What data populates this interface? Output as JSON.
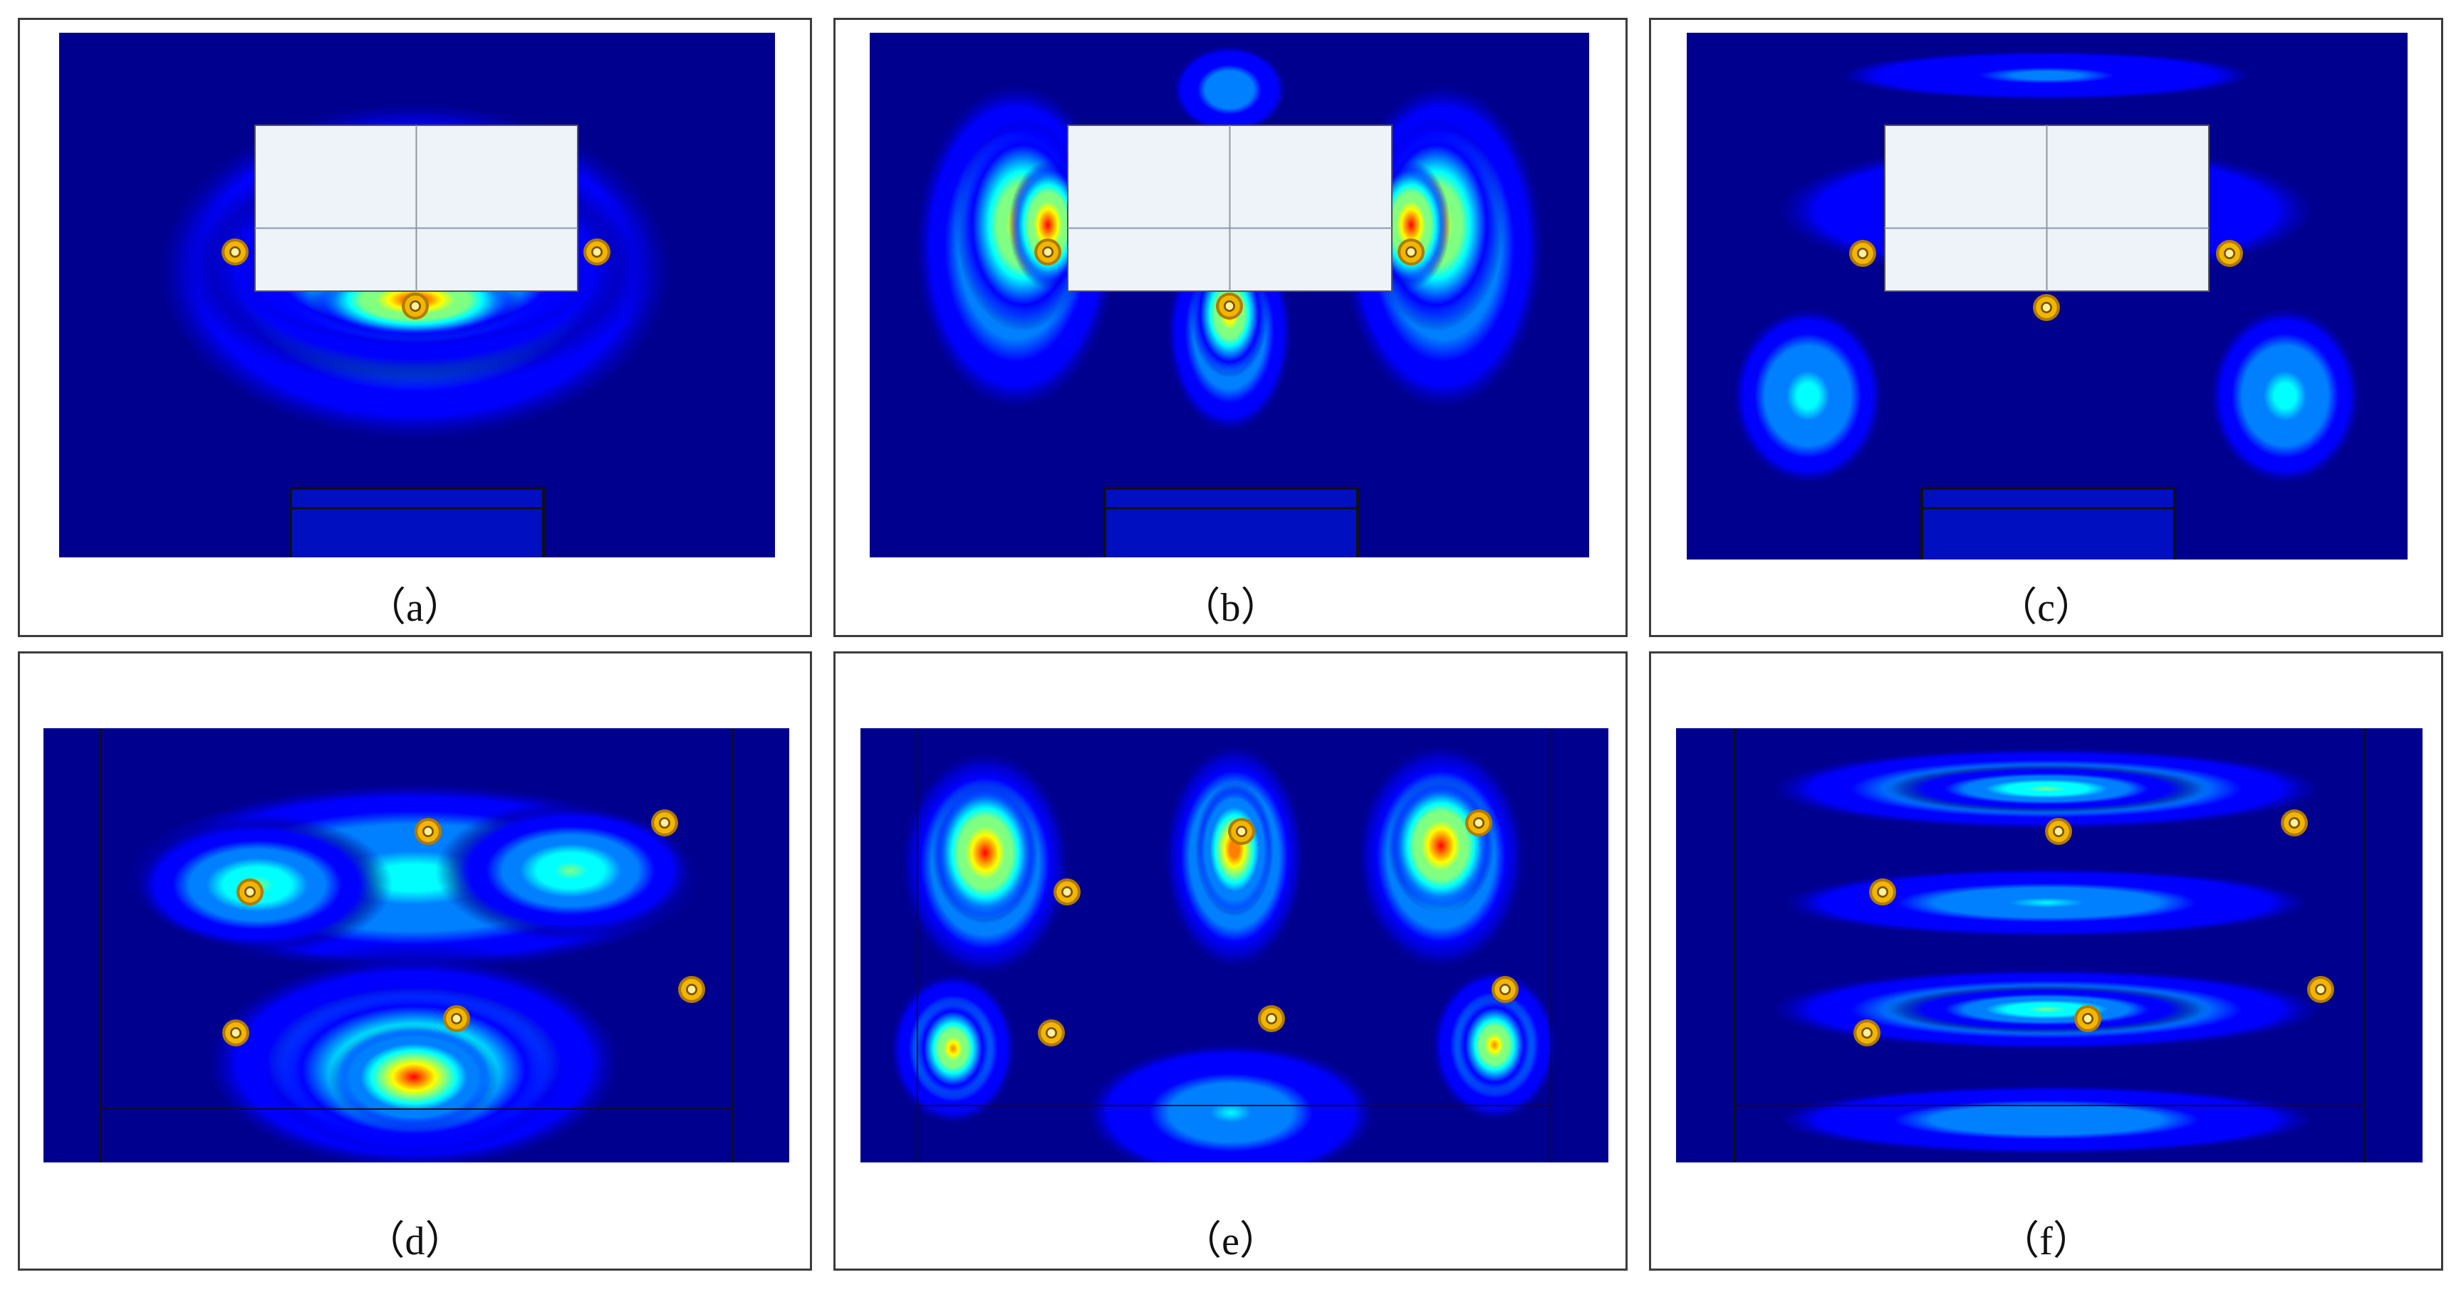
{
  "figure": {
    "panels": [
      {
        "id": "a",
        "caption": "（a）",
        "layout": "top",
        "mode": "a"
      },
      {
        "id": "b",
        "caption": "（b）",
        "layout": "top",
        "mode": "b"
      },
      {
        "id": "c",
        "caption": "（c）",
        "layout": "top",
        "mode": "c"
      },
      {
        "id": "d",
        "caption": "（d）",
        "layout": "bottom",
        "mode": "d"
      },
      {
        "id": "e",
        "caption": "（e）",
        "layout": "bottom",
        "mode": "e"
      },
      {
        "id": "f",
        "caption": "（f）",
        "layout": "bottom",
        "mode": "f"
      }
    ]
  },
  "colors": {
    "background_field": "#00008f",
    "enclosure_fill": "#eef3fa",
    "enclosure_grid": "#8f97a3",
    "sensor_ring": "#f2b600",
    "sensor_core": "#fff0a0",
    "frame_line": "#101010",
    "panel_border": "#3c3c3c"
  },
  "colormap": [
    "#00008f",
    "#0000ff",
    "#0080ff",
    "#00ffff",
    "#80ff80",
    "#ffff00",
    "#ff8000",
    "#ff0000"
  ],
  "icons": {
    "sensor": "sensor-ring-icon",
    "enclosure": "enclosure-box-icon"
  }
}
